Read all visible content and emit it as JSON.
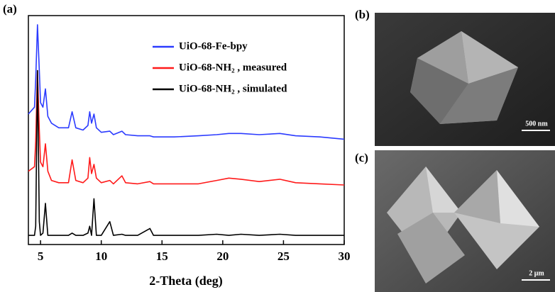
{
  "chart_data": {
    "type": "line",
    "panel_label": "(a)",
    "xlabel": "2-Theta (deg)",
    "x": [
      4.0,
      4.5,
      4.6,
      4.75,
      4.9,
      5.0,
      5.2,
      5.4,
      5.6,
      5.9,
      6.5,
      7.3,
      7.6,
      7.9,
      8.5,
      8.9,
      9.05,
      9.2,
      9.4,
      9.6,
      10.0,
      10.7,
      11.0,
      11.7,
      12.0,
      13.0,
      14.0,
      14.3,
      15.0,
      16.0,
      18.0,
      19.5,
      20.5,
      21.5,
      23.0,
      24.7,
      26.0,
      28.0,
      30.0
    ],
    "series": [
      {
        "name": "UiO-68-Fe-bpy",
        "color": "#2b3bff",
        "values": [
          57,
          60,
          72,
          96,
          76,
          62,
          60,
          68,
          56,
          53,
          51,
          51,
          58,
          51,
          50,
          52,
          58,
          53,
          57,
          51,
          49,
          49.5,
          48,
          49.5,
          48,
          47.5,
          47.5,
          47,
          47,
          47,
          47.5,
          48,
          48.5,
          48.5,
          48,
          48.5,
          47.5,
          47,
          46
        ]
      },
      {
        "name": "UiO-68-NH₂ , measured",
        "color": "#ff1a1a",
        "values": [
          32,
          34,
          45,
          76,
          50,
          36,
          34,
          44,
          32,
          28,
          27,
          27,
          37,
          28,
          27,
          29,
          38,
          31,
          35,
          29,
          27,
          28,
          26.5,
          30,
          27,
          26.5,
          27.5,
          26.5,
          26.5,
          26.5,
          26.5,
          28,
          29,
          28.5,
          27.5,
          28.5,
          27,
          26.5,
          26
        ]
      },
      {
        "name": "UiO-68-NH₂ , simulated",
        "color": "#000000",
        "values": [
          4,
          4,
          8,
          76,
          10,
          4,
          5,
          18,
          4,
          4,
          4,
          4,
          5,
          4,
          4,
          5,
          8,
          4,
          20,
          4,
          4,
          10,
          4,
          4.5,
          4,
          4,
          7,
          4,
          4,
          4,
          4,
          4.5,
          4,
          4.5,
          4,
          4.5,
          4,
          4,
          4
        ]
      }
    ],
    "xlim": [
      4,
      30
    ],
    "xticks": [
      5,
      10,
      15,
      20,
      25,
      30
    ],
    "ylim": [
      0,
      100
    ]
  },
  "panels": [
    {
      "label": "(b)",
      "scale_bar": "500 nm"
    },
    {
      "label": "(c)",
      "scale_bar": "2 μm"
    }
  ]
}
